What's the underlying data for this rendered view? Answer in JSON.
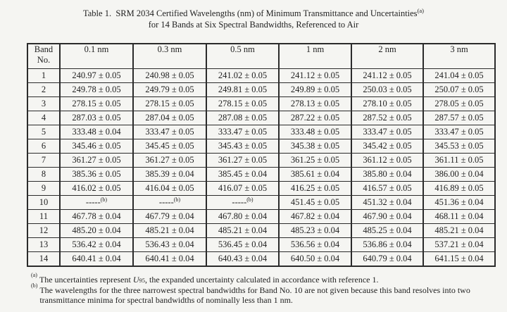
{
  "page": {
    "background_color": "#f5f5f2",
    "text_color": "#1f1f1f",
    "border_color": "#2b2b2b"
  },
  "title": {
    "line1": "Table 1.  SRM 2034 Certified Wavelengths (nm) of Minimum Transmittance and Uncertainties",
    "line1_superscript": "(a)",
    "line2": "for 14 Bands at Six Spectral Bandwidths, Referenced to Air"
  },
  "table": {
    "col_headers": [
      "Band\nNo.",
      "0.1 nm",
      "0.3 nm",
      "0.5 nm",
      "1 nm",
      "2 nm",
      "3 nm"
    ],
    "rows": [
      {
        "band": "1",
        "values": [
          "240.97 ± 0.05",
          "240.98 ± 0.05",
          "241.02 ± 0.05",
          "241.12 ± 0.05",
          "241.12 ± 0.05",
          "241.04 ± 0.05"
        ]
      },
      {
        "band": "2",
        "values": [
          "249.78 ± 0.05",
          "249.79 ± 0.05",
          "249.81 ± 0.05",
          "249.89 ± 0.05",
          "250.03 ± 0.05",
          "250.07 ± 0.05"
        ]
      },
      {
        "band": "3",
        "values": [
          "278.15 ± 0.05",
          "278.15 ± 0.05",
          "278.15 ± 0.05",
          "278.13 ± 0.05",
          "278.10 ± 0.05",
          "278.05 ± 0.05"
        ]
      },
      {
        "band": "4",
        "values": [
          "287.03 ± 0.05",
          "287.04 ± 0.05",
          "287.08 ± 0.05",
          "287.22 ± 0.05",
          "287.52 ± 0.05",
          "287.57 ± 0.05"
        ]
      },
      {
        "band": "5",
        "values": [
          "333.48 ± 0.04",
          "333.47 ± 0.05",
          "333.47 ± 0.05",
          "333.48 ± 0.05",
          "333.47 ± 0.05",
          "333.47 ± 0.05"
        ]
      },
      {
        "band": "6",
        "values": [
          "345.46 ± 0.05",
          "345.45 ± 0.05",
          "345.43 ± 0.05",
          "345.38 ± 0.05",
          "345.42 ± 0.05",
          "345.53 ± 0.05"
        ]
      },
      {
        "band": "7",
        "values": [
          "361.27 ± 0.05",
          "361.27 ± 0.05",
          "361.27 ± 0.05",
          "361.25 ± 0.05",
          "361.12 ± 0.05",
          "361.11 ± 0.05"
        ]
      },
      {
        "band": "8",
        "values": [
          "385.36 ± 0.05",
          "385.39 ± 0.04",
          "385.45 ± 0.04",
          "385.61 ± 0.04",
          "385.80 ± 0.04",
          "386.00 ± 0.04"
        ]
      },
      {
        "band": "9",
        "values": [
          "416.02 ± 0.05",
          "416.04 ± 0.05",
          "416.07 ± 0.05",
          "416.25 ± 0.05",
          "416.57 ± 0.05",
          "416.89 ± 0.05"
        ]
      },
      {
        "band": "10",
        "values": [
          "-----(b)",
          "-----(b)",
          "-----(b)",
          "451.45 ± 0.05",
          "451.32 ± 0.04",
          "451.36 ± 0.04"
        ]
      },
      {
        "band": "11",
        "values": [
          "467.78 ± 0.04",
          "467.79 ± 0.04",
          "467.80 ± 0.04",
          "467.82 ± 0.04",
          "467.90 ± 0.04",
          "468.11 ± 0.04"
        ]
      },
      {
        "band": "12",
        "values": [
          "485.20 ± 0.04",
          "485.21 ± 0.04",
          "485.21 ± 0.04",
          "485.23 ± 0.04",
          "485.25 ± 0.04",
          "485.21 ± 0.04"
        ]
      },
      {
        "band": "13",
        "values": [
          "536.42 ± 0.04",
          "536.43 ± 0.04",
          "536.45 ± 0.04",
          "536.56 ± 0.04",
          "536.86 ± 0.04",
          "537.21 ± 0.04"
        ]
      },
      {
        "band": "14",
        "values": [
          "640.41 ± 0.04",
          "640.41 ± 0.04",
          "640.43 ± 0.04",
          "640.50 ± 0.04",
          "640.79 ± 0.04",
          "641.15 ± 0.04"
        ]
      }
    ]
  },
  "footnotes": {
    "a": {
      "marker": "(a)",
      "pre": "The uncertainties represent ",
      "u_symbol": "U",
      "u_subscript": "95",
      "post": ", the expanded uncertainty calculated in accordance with reference 1."
    },
    "b": {
      "marker": "(b)",
      "text": "The wavelengths for the three narrowest spectral bandwidths for Band No. 10 are not given because this band resolves into two transmittance minima for spectral bandwidths of nominally less than 1 nm."
    }
  }
}
